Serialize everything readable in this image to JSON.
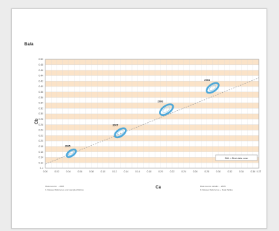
{
  "chart_data": {
    "type": "scatter",
    "title": "Ba/a",
    "xlabel": "Ca",
    "ylabel": "Cb",
    "xlim": [
      0.0,
      0.37
    ],
    "ylim": [
      0.1,
      0.5
    ],
    "x_ticks": [
      "0.00",
      "0.01",
      "0.02",
      "0.03",
      "0.04",
      "0.05",
      "0.06",
      "0.07",
      "0.08",
      "0.09",
      "0.10",
      "0.11",
      "0.12",
      "0.13",
      "0.14",
      "0.15",
      "0.16",
      "0.17",
      "0.18",
      "0.19",
      "0.20",
      "0.21",
      "0.22",
      "0.23",
      "0.24",
      "0.25",
      "0.26",
      "0.27",
      "0.28",
      "0.29",
      "0.30",
      "0.31",
      "0.32",
      "0.33",
      "0.34",
      "0.35",
      "0.36",
      "0.37"
    ],
    "y_ticks": [
      "0.1",
      "0.12",
      "0.14",
      "0.16",
      "0.18",
      "0.20",
      "0.22",
      "0.24",
      "0.26",
      "0.28",
      "0.30",
      "0.32",
      "0.34",
      "0.36",
      "0.38",
      "0.40",
      "0.42",
      "0.44",
      "0.46",
      "0.48",
      "0.50"
    ],
    "x_tick_labels_shown": [
      "0.00",
      "0.02",
      "0.04",
      "0.06",
      "0.08",
      "0.10",
      "0.12",
      "0.14",
      "0.16",
      "0.18",
      "0.20",
      "0.22",
      "0.24",
      "0.26",
      "0.28",
      "0.30",
      "0.32",
      "0.34",
      "0.36",
      "0.37"
    ],
    "y_tick_labels_shown": [
      "0.1",
      "0.12",
      "0.14",
      "0.16",
      "0.18",
      "0.20",
      "0.22",
      "0.24",
      "0.26",
      "0.28",
      "0.30",
      "0.32",
      "0.34",
      "0.36",
      "0.38",
      "0.40",
      "0.42",
      "0.44",
      "0.46",
      "0.48",
      "0.50"
    ],
    "grid": true,
    "clusters": [
      {
        "label": "2005",
        "cx": 0.045,
        "cy": 0.155,
        "rx": 0.009,
        "ry": 0.01
      },
      {
        "label": "2007",
        "cx": 0.13,
        "cy": 0.23,
        "rx": 0.011,
        "ry": 0.012
      },
      {
        "label": "2003",
        "cx": 0.21,
        "cy": 0.315,
        "rx": 0.013,
        "ry": 0.014
      },
      {
        "label": "2004",
        "cx": 0.29,
        "cy": 0.395,
        "rx": 0.012,
        "ry": 0.013
      }
    ],
    "trend": {
      "x": [
        0.0,
        0.37
      ],
      "y": [
        0.115,
        0.432
      ]
    },
    "legend": "BAL = Best data zone",
    "footnote_left": [
      "Data source: ...2005",
      "1 Dataset Reference and sampled Ratios"
    ],
    "footnote_right": [
      "Data source details: ...2005",
      "1 Dataset Reference + Data Tables"
    ],
    "colors": {
      "band": "#fbe3c8",
      "grid": "#d8d8d8",
      "cluster": "#3aa0d8",
      "trend": "#9a9a9a"
    }
  }
}
